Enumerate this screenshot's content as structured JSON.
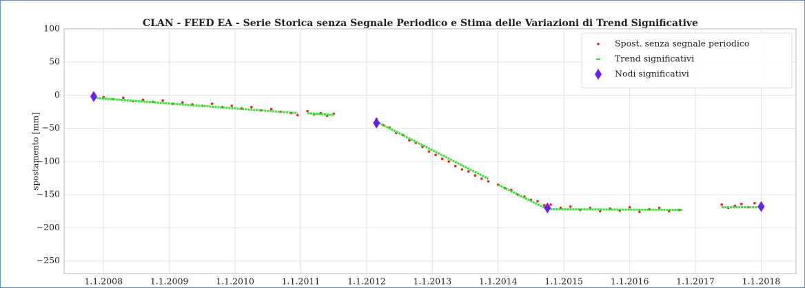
{
  "chart_data": {
    "type": "scatter",
    "title": "CLAN - FEED EA - Serie Storica senza Segnale Periodico e Stima delle Variazioni di Trend Significative",
    "ylabel": "spostamento [mm]",
    "xlim": [
      2007.4,
      2018.53
    ],
    "xticks": [
      {
        "value": 2008,
        "label": "1.1.2008"
      },
      {
        "value": 2009,
        "label": "1.1.2009"
      },
      {
        "value": 2010,
        "label": "1.1.2010"
      },
      {
        "value": 2011,
        "label": "1.1.2011"
      },
      {
        "value": 2012,
        "label": "1.1.2012"
      },
      {
        "value": 2013,
        "label": "1.1.2013"
      },
      {
        "value": 2014,
        "label": "1.1.2014"
      },
      {
        "value": 2015,
        "label": "1.1.2015"
      },
      {
        "value": 2016,
        "label": "1.1.2016"
      },
      {
        "value": 2017,
        "label": "1.1.2017"
      },
      {
        "value": 2018,
        "label": "1.1.2018"
      }
    ],
    "ylim": [
      -269,
      100
    ],
    "yticks": [
      100,
      50,
      0,
      {
        "value": -50,
        "label": "−50"
      },
      {
        "value": -100,
        "label": "−100"
      },
      {
        "value": -150,
        "label": "−150"
      },
      {
        "value": -200,
        "label": "−200"
      },
      {
        "value": -250,
        "label": "−250"
      }
    ],
    "grid": true,
    "legend": "upper right",
    "series": [
      {
        "name": "Spost. senza segnale periodico",
        "type": "scatter",
        "marker": "dot",
        "color": "#ff1a1a",
        "x": [
          2007.85,
          2008.0,
          2008.15,
          2008.3,
          2008.45,
          2008.6,
          2008.75,
          2008.9,
          2009.05,
          2009.2,
          2009.35,
          2009.5,
          2009.65,
          2009.8,
          2009.95,
          2010.1,
          2010.25,
          2010.4,
          2010.55,
          2010.7,
          2010.85,
          2010.95,
          2011.1,
          2011.2,
          2011.3,
          2011.4,
          2011.5,
          2012.15,
          2012.25,
          2012.35,
          2012.45,
          2012.55,
          2012.65,
          2012.75,
          2012.85,
          2012.95,
          2013.05,
          2013.15,
          2013.25,
          2013.35,
          2013.45,
          2013.55,
          2013.65,
          2013.75,
          2013.85,
          2014.0,
          2014.1,
          2014.2,
          2014.3,
          2014.4,
          2014.5,
          2014.6,
          2014.7,
          2014.8,
          2014.95,
          2015.1,
          2015.25,
          2015.4,
          2015.55,
          2015.7,
          2015.85,
          2016.0,
          2016.15,
          2016.3,
          2016.45,
          2016.6,
          2016.75,
          2017.4,
          2017.5,
          2017.6,
          2017.7,
          2017.8,
          2017.9,
          2018.0
        ],
        "values": [
          -1,
          -3,
          -6,
          -4,
          -9,
          -7,
          -10,
          -8,
          -13,
          -11,
          -14,
          -16,
          -13,
          -18,
          -16,
          -20,
          -18,
          -23,
          -21,
          -25,
          -27,
          -30,
          -24,
          -29,
          -27,
          -31,
          -28,
          -36,
          -45,
          -49,
          -57,
          -60,
          -68,
          -72,
          -78,
          -85,
          -90,
          -96,
          -100,
          -107,
          -112,
          -115,
          -121,
          -126,
          -130,
          -135,
          -140,
          -143,
          -150,
          -153,
          -158,
          -160,
          -166,
          -165,
          -170,
          -168,
          -173,
          -170,
          -175,
          -171,
          -174,
          -169,
          -176,
          -172,
          -170,
          -175,
          -173,
          -165,
          -170,
          -167,
          -164,
          -169,
          -163,
          -166
        ]
      },
      {
        "name": "Trend significativi",
        "type": "line",
        "color": "#2ee82e",
        "x": [
          2007.85,
          2010.95,
          null,
          2011.1,
          2011.5,
          null,
          2012.15,
          2013.85,
          null,
          2014.0,
          2014.75,
          2016.8,
          null,
          2017.4,
          2018.0
        ],
        "values": [
          -4,
          -27,
          null,
          -27,
          -30,
          null,
          -40,
          -126,
          null,
          -135,
          -172,
          -173,
          null,
          -169,
          -169
        ]
      },
      {
        "name": "Nodi significativi",
        "type": "scatter",
        "marker": "diamond",
        "color": "#6a1ff2",
        "x": [
          2007.85,
          2012.15,
          2014.75,
          2018.0
        ],
        "values": [
          -2,
          -42,
          -170,
          -168
        ]
      }
    ]
  }
}
